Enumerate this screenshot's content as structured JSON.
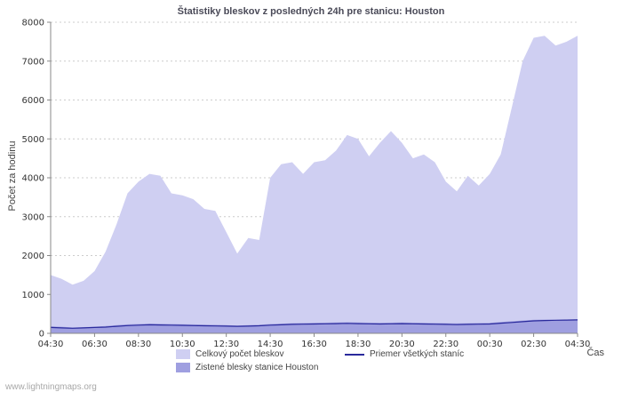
{
  "title": "Štatistiky bleskov z posledných 24h pre stanicu: Houston",
  "ylabel": "Počet za hodinu",
  "xlabel": "Čas",
  "watermark": "www.lightningmaps.org",
  "legend": {
    "total": "Celkový počet bleskov",
    "average": "Priemer všetkých staníc",
    "station": "Zistené blesky stanice Houston"
  },
  "colors": {
    "total_area": "#cfcff2",
    "station_area": "#9f9fe0",
    "average_line": "#2a2a9c",
    "grid": "#cccccc",
    "axis": "#888888"
  },
  "chart_data": {
    "type": "area",
    "title": "Štatistiky bleskov z posledných 24h pre stanicu: Houston",
    "xlabel": "Čas",
    "ylabel": "Počet za hodinu",
    "ylim": [
      0,
      8000
    ],
    "y_ticks": [
      0,
      1000,
      2000,
      3000,
      4000,
      5000,
      6000,
      7000,
      8000
    ],
    "x_ticks": [
      "04:30",
      "06:30",
      "08:30",
      "10:30",
      "12:30",
      "14:30",
      "16:30",
      "18:30",
      "20:30",
      "22:30",
      "00:30",
      "02:30",
      "04:30"
    ],
    "tick_interval": 4,
    "grid": "horizontal-dashed",
    "legend_position": "bottom",
    "series": [
      {
        "name": "Celkový počet bleskov",
        "type": "area",
        "color": "#cfcff2",
        "values": [
          1500,
          1400,
          1250,
          1350,
          1600,
          2100,
          2800,
          3600,
          3900,
          4100,
          4050,
          3600,
          3550,
          3450,
          3200,
          3150,
          2600,
          2050,
          2450,
          2400,
          4000,
          4350,
          4400,
          4100,
          4400,
          4450,
          4700,
          5100,
          5000,
          4550,
          4900,
          5200,
          4900,
          4500,
          4600,
          4400,
          3900,
          3650,
          4050,
          3800,
          4100,
          4600,
          5800,
          7000,
          7600,
          7650,
          7400,
          7500,
          7650
        ]
      },
      {
        "name": "Zistené blesky stanice Houston",
        "type": "area",
        "color": "#9f9fe0",
        "values": [
          180,
          170,
          150,
          160,
          170,
          190,
          210,
          230,
          240,
          250,
          245,
          240,
          235,
          230,
          225,
          220,
          210,
          200,
          210,
          220,
          240,
          250,
          260,
          265,
          270,
          275,
          280,
          285,
          280,
          275,
          270,
          275,
          280,
          275,
          270,
          265,
          260,
          255,
          260,
          265,
          270,
          290,
          310,
          330,
          350,
          355,
          350,
          355,
          360
        ]
      },
      {
        "name": "Priemer všetkých staníc",
        "type": "line",
        "color": "#2a2a9c",
        "values": [
          150,
          140,
          130,
          140,
          150,
          160,
          180,
          200,
          210,
          220,
          215,
          210,
          205,
          200,
          195,
          190,
          185,
          180,
          185,
          195,
          210,
          220,
          230,
          235,
          240,
          245,
          250,
          255,
          250,
          245,
          240,
          245,
          250,
          245,
          240,
          235,
          230,
          225,
          230,
          235,
          240,
          260,
          280,
          300,
          320,
          330,
          335,
          340,
          345
        ]
      }
    ]
  }
}
